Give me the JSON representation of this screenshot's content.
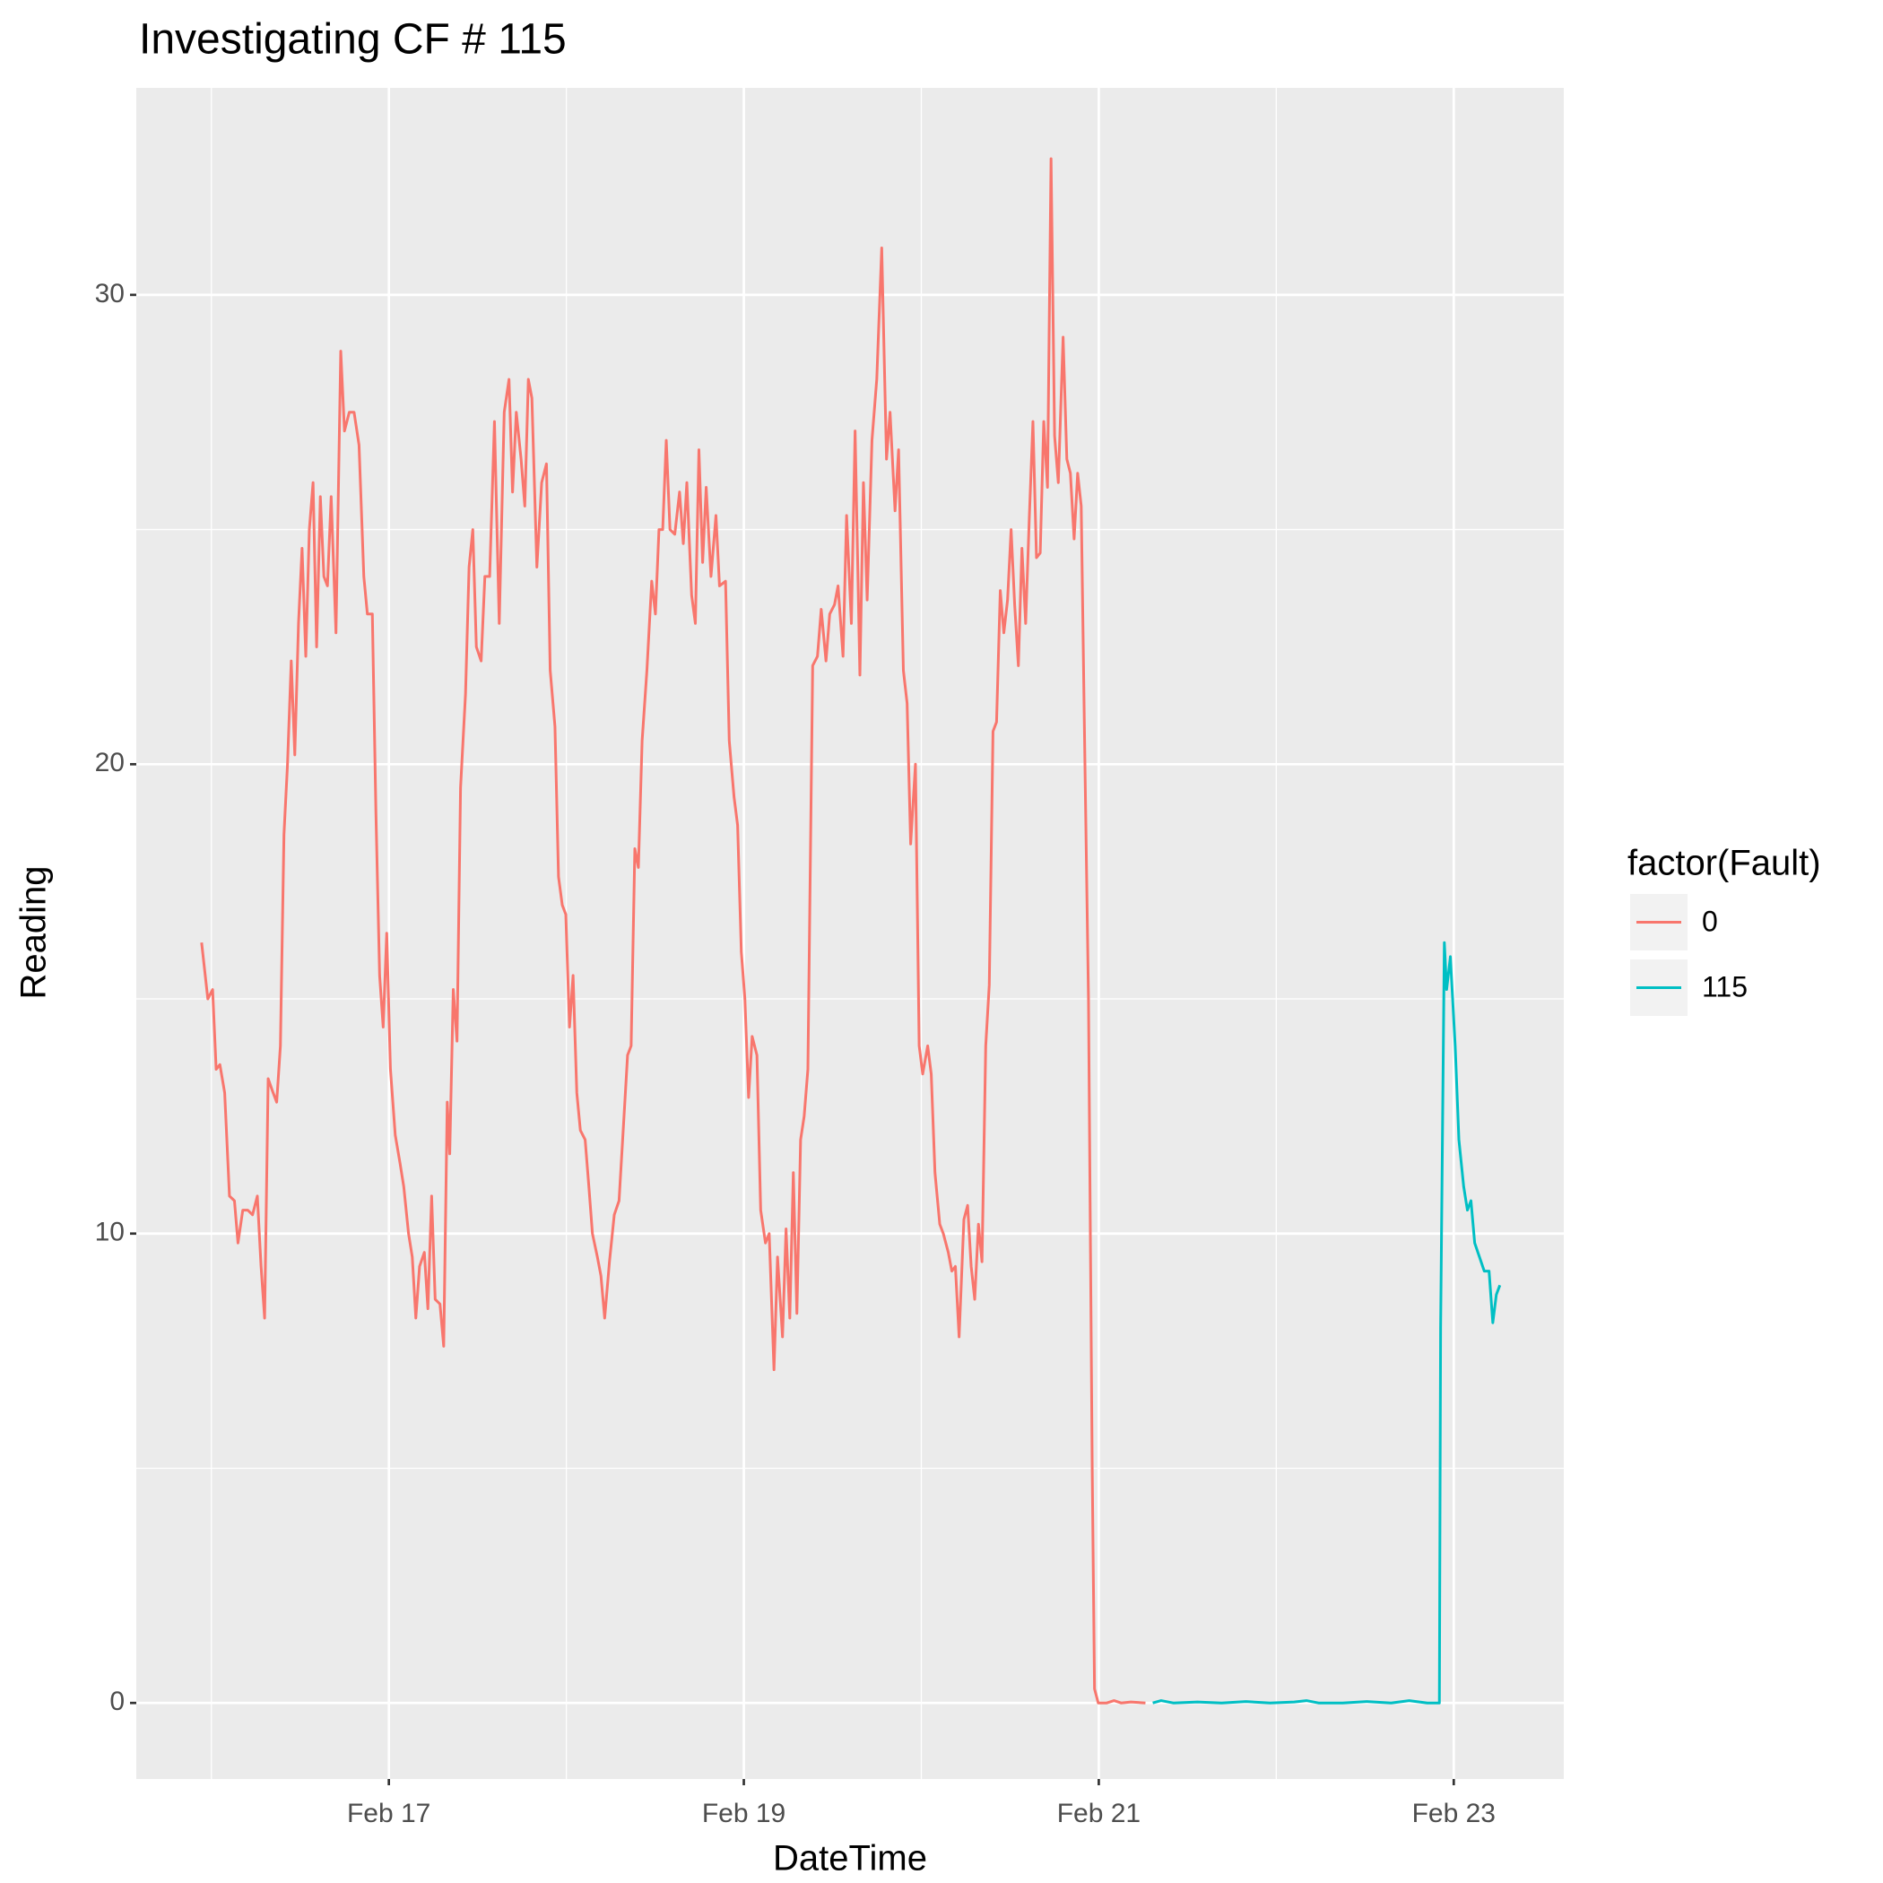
{
  "chart_data": {
    "type": "line",
    "title": "Investigating CF # 115",
    "x_label": "DateTime",
    "y_label": "Reading",
    "legend_title": "factor(Fault)",
    "legend": "right",
    "grid": true,
    "xlim": [
      15.577,
      23.62
    ],
    "ylim": [
      -1.62,
      34.41
    ],
    "xticks": [
      {
        "value": 17,
        "label": "Feb 17"
      },
      {
        "value": 19,
        "label": "Feb 19"
      },
      {
        "value": 21,
        "label": "Feb 21"
      },
      {
        "value": 23,
        "label": "Feb 23"
      }
    ],
    "yticks": [
      0,
      10,
      20,
      30
    ],
    "series": [
      {
        "name": "0",
        "color": "#f8766d",
        "x": [
          15.945,
          15.98,
          16.007,
          16.027,
          16.048,
          16.075,
          16.102,
          16.13,
          16.15,
          16.177,
          16.205,
          16.232,
          16.259,
          16.28,
          16.3,
          16.32,
          16.348,
          16.368,
          16.389,
          16.409,
          16.429,
          16.45,
          16.47,
          16.491,
          16.511,
          16.532,
          16.552,
          16.573,
          16.593,
          16.614,
          16.634,
          16.654,
          16.675,
          16.702,
          16.729,
          16.75,
          16.777,
          16.804,
          16.832,
          16.859,
          16.879,
          16.907,
          16.927,
          16.948,
          16.968,
          16.988,
          17.009,
          17.036,
          17.063,
          17.084,
          17.111,
          17.132,
          17.152,
          17.173,
          17.2,
          17.22,
          17.241,
          17.261,
          17.288,
          17.309,
          17.329,
          17.343,
          17.363,
          17.384,
          17.404,
          17.432,
          17.452,
          17.473,
          17.493,
          17.52,
          17.541,
          17.568,
          17.595,
          17.622,
          17.65,
          17.677,
          17.697,
          17.718,
          17.745,
          17.766,
          17.786,
          17.806,
          17.834,
          17.861,
          17.888,
          17.909,
          17.936,
          17.956,
          17.977,
          17.997,
          18.018,
          18.038,
          18.059,
          18.079,
          18.106,
          18.127,
          18.147,
          18.175,
          18.195,
          18.216,
          18.243,
          18.27,
          18.297,
          18.325,
          18.345,
          18.365,
          18.386,
          18.406,
          18.427,
          18.454,
          18.481,
          18.502,
          18.522,
          18.543,
          18.563,
          18.584,
          18.611,
          18.638,
          18.659,
          18.679,
          18.706,
          18.727,
          18.747,
          18.768,
          18.788,
          18.815,
          18.843,
          18.863,
          18.897,
          18.918,
          18.945,
          18.965,
          18.986,
          19.006,
          19.027,
          19.047,
          19.074,
          19.095,
          19.122,
          19.143,
          19.17,
          19.19,
          19.218,
          19.238,
          19.259,
          19.279,
          19.299,
          19.32,
          19.34,
          19.361,
          19.388,
          19.415,
          19.436,
          19.463,
          19.484,
          19.511,
          19.531,
          19.559,
          19.579,
          19.606,
          19.627,
          19.654,
          19.674,
          19.695,
          19.722,
          19.749,
          19.777,
          19.804,
          19.824,
          19.852,
          19.872,
          19.899,
          19.92,
          19.94,
          19.967,
          19.988,
          20.008,
          20.036,
          20.056,
          20.077,
          20.104,
          20.124,
          20.152,
          20.172,
          20.192,
          20.213,
          20.24,
          20.261,
          20.281,
          20.301,
          20.322,
          20.342,
          20.363,
          20.383,
          20.404,
          20.424,
          20.445,
          20.465,
          20.486,
          20.506,
          20.526,
          20.547,
          20.567,
          20.588,
          20.608,
          20.629,
          20.649,
          20.67,
          20.69,
          20.711,
          20.731,
          20.751,
          20.772,
          20.799,
          20.82,
          20.84,
          20.861,
          20.881,
          20.901,
          20.922,
          20.942,
          20.963,
          20.976,
          20.997,
          21.045,
          21.086,
          21.126,
          21.181,
          21.263
        ],
        "values": [
          16.2,
          15,
          15.2,
          13.5,
          13.6,
          13,
          10.8,
          10.7,
          9.8,
          10.5,
          10.5,
          10.4,
          10.8,
          9.3,
          8.2,
          13.3,
          13,
          12.8,
          14,
          18.5,
          20,
          22.2,
          20.2,
          23,
          24.6,
          22.3,
          25,
          26,
          22.5,
          25.7,
          24,
          23.8,
          25.7,
          22.8,
          28.8,
          27.1,
          27.5,
          27.5,
          26.8,
          24,
          23.2,
          23.2,
          19,
          15.5,
          14.4,
          16.4,
          13.5,
          12.1,
          11.5,
          11,
          10,
          9.5,
          8.2,
          9.3,
          9.6,
          8.4,
          10.8,
          8.6,
          8.5,
          7.6,
          12.8,
          11.7,
          15.2,
          14.1,
          19.5,
          21.5,
          24.2,
          25,
          22.5,
          22.2,
          24,
          24,
          27.3,
          23,
          27.5,
          28.2,
          25.8,
          27.5,
          26.5,
          25.5,
          28.2,
          27.8,
          24.2,
          26,
          26.4,
          22,
          20.8,
          17.6,
          17,
          16.8,
          14.4,
          15.5,
          13,
          12.2,
          12,
          11,
          10,
          9.5,
          9.1,
          8.2,
          9.4,
          10.4,
          10.7,
          12.5,
          13.8,
          14,
          18.2,
          17.8,
          20.5,
          22,
          23.9,
          23.2,
          25,
          25,
          26.9,
          25,
          24.9,
          25.8,
          24.7,
          26,
          23.6,
          23,
          26.7,
          24.3,
          25.9,
          24,
          25.3,
          23.8,
          23.9,
          20.5,
          19.3,
          18.7,
          16,
          15,
          12.9,
          14.2,
          13.8,
          10.5,
          9.8,
          10,
          7.1,
          9.5,
          7.8,
          10.1,
          8.2,
          11.3,
          8.3,
          12,
          12.5,
          13.5,
          22.1,
          22.3,
          23.3,
          22.2,
          23.2,
          23.4,
          23.8,
          22.3,
          25.3,
          23,
          27.1,
          21.9,
          26,
          23.5,
          26.9,
          28.2,
          31,
          26.5,
          27.5,
          25.4,
          26.7,
          22,
          21.3,
          18.3,
          20,
          14,
          13.4,
          14,
          13.4,
          11.3,
          10.2,
          10,
          9.6,
          9.2,
          9.3,
          7.8,
          10.3,
          10.6,
          9.3,
          8.6,
          10.2,
          9.4,
          14,
          15.3,
          20.7,
          20.9,
          23.7,
          22.8,
          23.5,
          25,
          23.4,
          22.1,
          24.6,
          23,
          25.2,
          27.3,
          24.4,
          24.5,
          27.3,
          25.9,
          32.9,
          27,
          26,
          29.1,
          26.5,
          26.2,
          24.8,
          26.2,
          25.5,
          20,
          15,
          5,
          0.3,
          0,
          0,
          0.05,
          0,
          0.02,
          0
        ]
      },
      {
        "name": "115",
        "color": "#00bfc4",
        "x": [
          21.304,
          21.351,
          21.42,
          21.556,
          21.692,
          21.829,
          21.965,
          22.101,
          22.17,
          22.238,
          22.374,
          22.51,
          22.647,
          22.749,
          22.851,
          22.919,
          22.926,
          22.947,
          22.96,
          22.981,
          23.008,
          23.029,
          23.056,
          23.077,
          23.097,
          23.118,
          23.145,
          23.172,
          23.199,
          23.22,
          23.24,
          23.26
        ],
        "values": [
          0,
          0.05,
          0,
          0.02,
          0,
          0.03,
          0,
          0.02,
          0.05,
          0,
          0,
          0.03,
          0,
          0.05,
          0,
          0,
          8,
          16.2,
          15.2,
          15.9,
          14,
          12,
          11,
          10.5,
          10.7,
          9.8,
          9.5,
          9.2,
          9.2,
          8.1,
          8.7,
          8.9
        ]
      }
    ]
  }
}
